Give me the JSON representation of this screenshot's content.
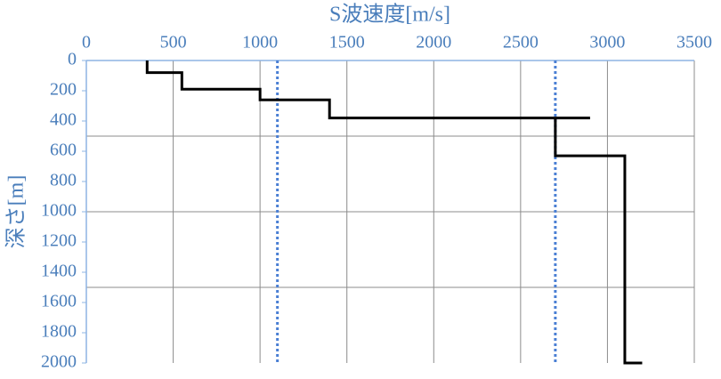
{
  "chart_data": {
    "type": "step-line",
    "xlabel": "S波速度[m/s]",
    "ylabel": "深さ[m]",
    "xlim": [
      0,
      3500
    ],
    "xticks": [
      0,
      500,
      1000,
      1500,
      2000,
      2500,
      3000,
      3500
    ],
    "ylim": [
      0,
      2000
    ],
    "yticks": [
      0,
      200,
      400,
      600,
      800,
      1000,
      1200,
      1400,
      1600,
      1800,
      2000
    ],
    "y_inverted": true,
    "ygrid": [
      500,
      1000,
      1500
    ],
    "grid": true,
    "series": [
      {
        "color": "#000000",
        "x": [
          350,
          350,
          550,
          550,
          1000,
          1000,
          1400,
          1400,
          2900,
          2700,
          2700,
          3100,
          3100,
          3200
        ],
        "y": [
          0,
          80,
          80,
          190,
          190,
          260,
          260,
          380,
          380,
          380,
          630,
          630,
          2000,
          2000
        ]
      }
    ],
    "reference_lines": [
      {
        "x": 1100,
        "color": "#4a7fd4"
      },
      {
        "x": 2700,
        "color": "#4a7fd4"
      }
    ]
  }
}
